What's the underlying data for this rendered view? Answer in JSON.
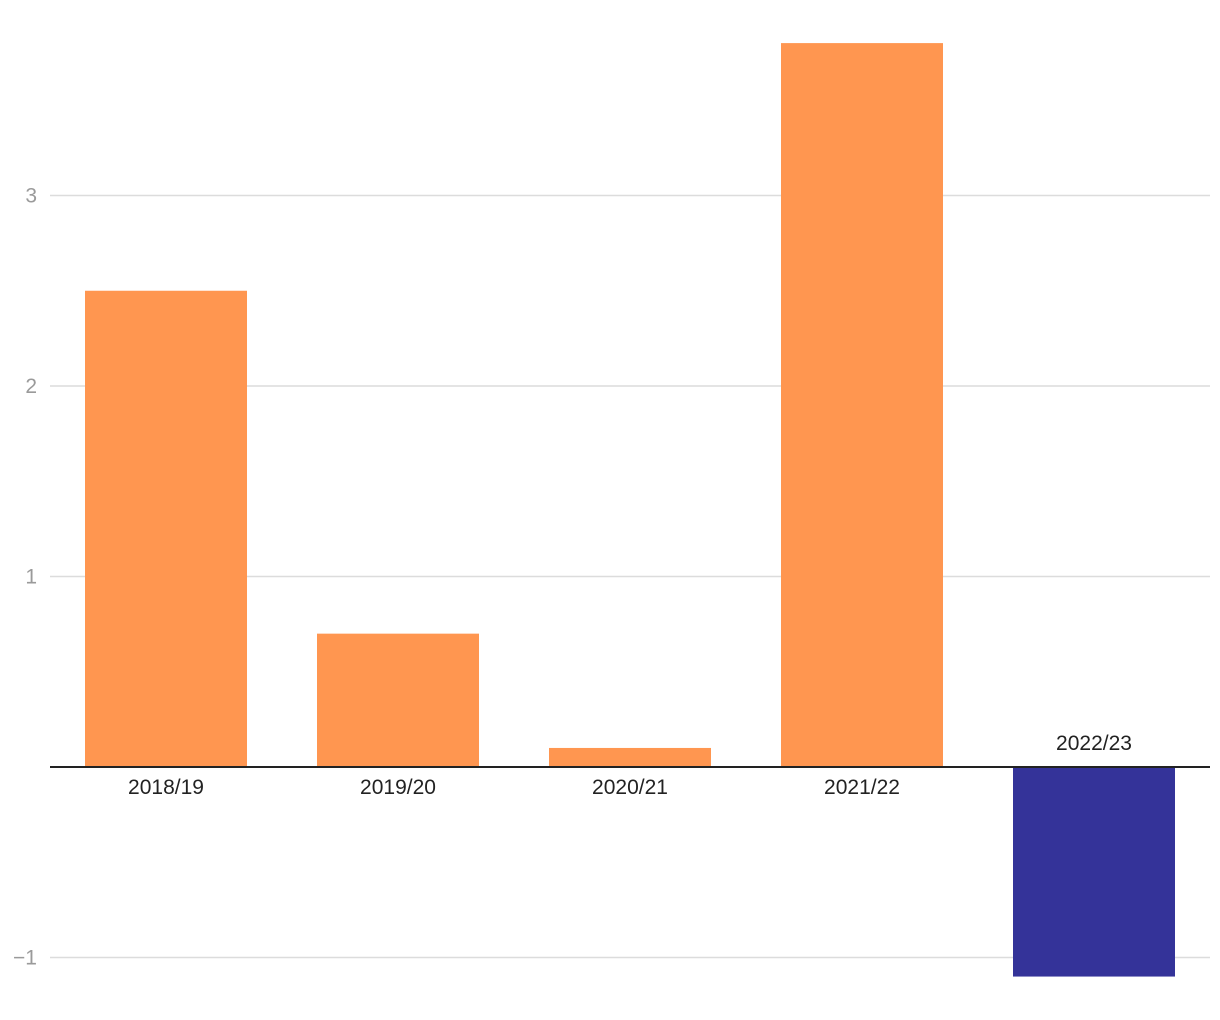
{
  "chart_data": {
    "type": "bar",
    "categories": [
      "2018/19",
      "2019/20",
      "2020/21",
      "2021/22",
      "2022/23"
    ],
    "values": [
      2.5,
      0.7,
      0.1,
      3.8,
      -1.1
    ],
    "title": "",
    "xlabel": "",
    "ylabel": "",
    "ylim": [
      -1.1,
      3.8
    ],
    "y_ticks": [
      {
        "value": -1,
        "label": "−1"
      },
      {
        "value": 1,
        "label": "1"
      },
      {
        "value": 2,
        "label": "2"
      },
      {
        "value": 3,
        "label": "3"
      }
    ],
    "grid": true,
    "legend": "none",
    "colors": {
      "positive": "#ff9650",
      "negative": "#343399"
    }
  }
}
